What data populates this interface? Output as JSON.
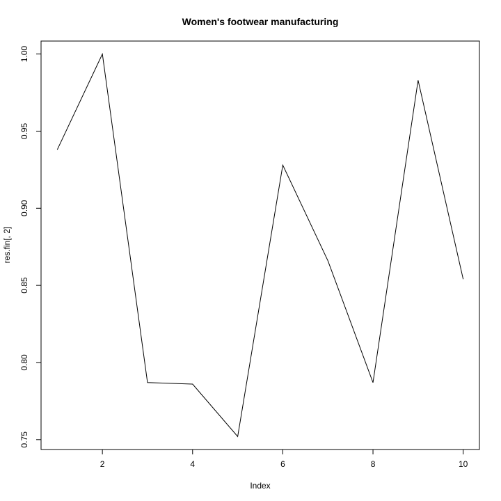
{
  "chart_data": {
    "type": "line",
    "title": "Women's footwear manufacturing",
    "xlabel": "Index",
    "ylabel": "res.fin[, 2]",
    "x": [
      1,
      2,
      3,
      4,
      5,
      6,
      7,
      8,
      9,
      10
    ],
    "series": [
      {
        "values": [
          0.938,
          1.0,
          0.787,
          0.786,
          0.752,
          0.928,
          0.866,
          0.787,
          0.983,
          0.854
        ],
        "color": "#000000"
      }
    ],
    "xlim": [
      0.64,
      10.36
    ],
    "ylim": [
      0.7436,
      1.0084
    ],
    "xticks": [
      2,
      4,
      6,
      8,
      10
    ],
    "yticks": [
      0.75,
      0.8,
      0.85,
      0.9,
      0.95,
      1.0
    ],
    "xtick_labels": [
      "2",
      "4",
      "6",
      "8",
      "10"
    ],
    "ytick_labels": [
      "0.75",
      "0.80",
      "0.85",
      "0.90",
      "0.95",
      "1.00"
    ],
    "grid": false,
    "legend": false
  }
}
